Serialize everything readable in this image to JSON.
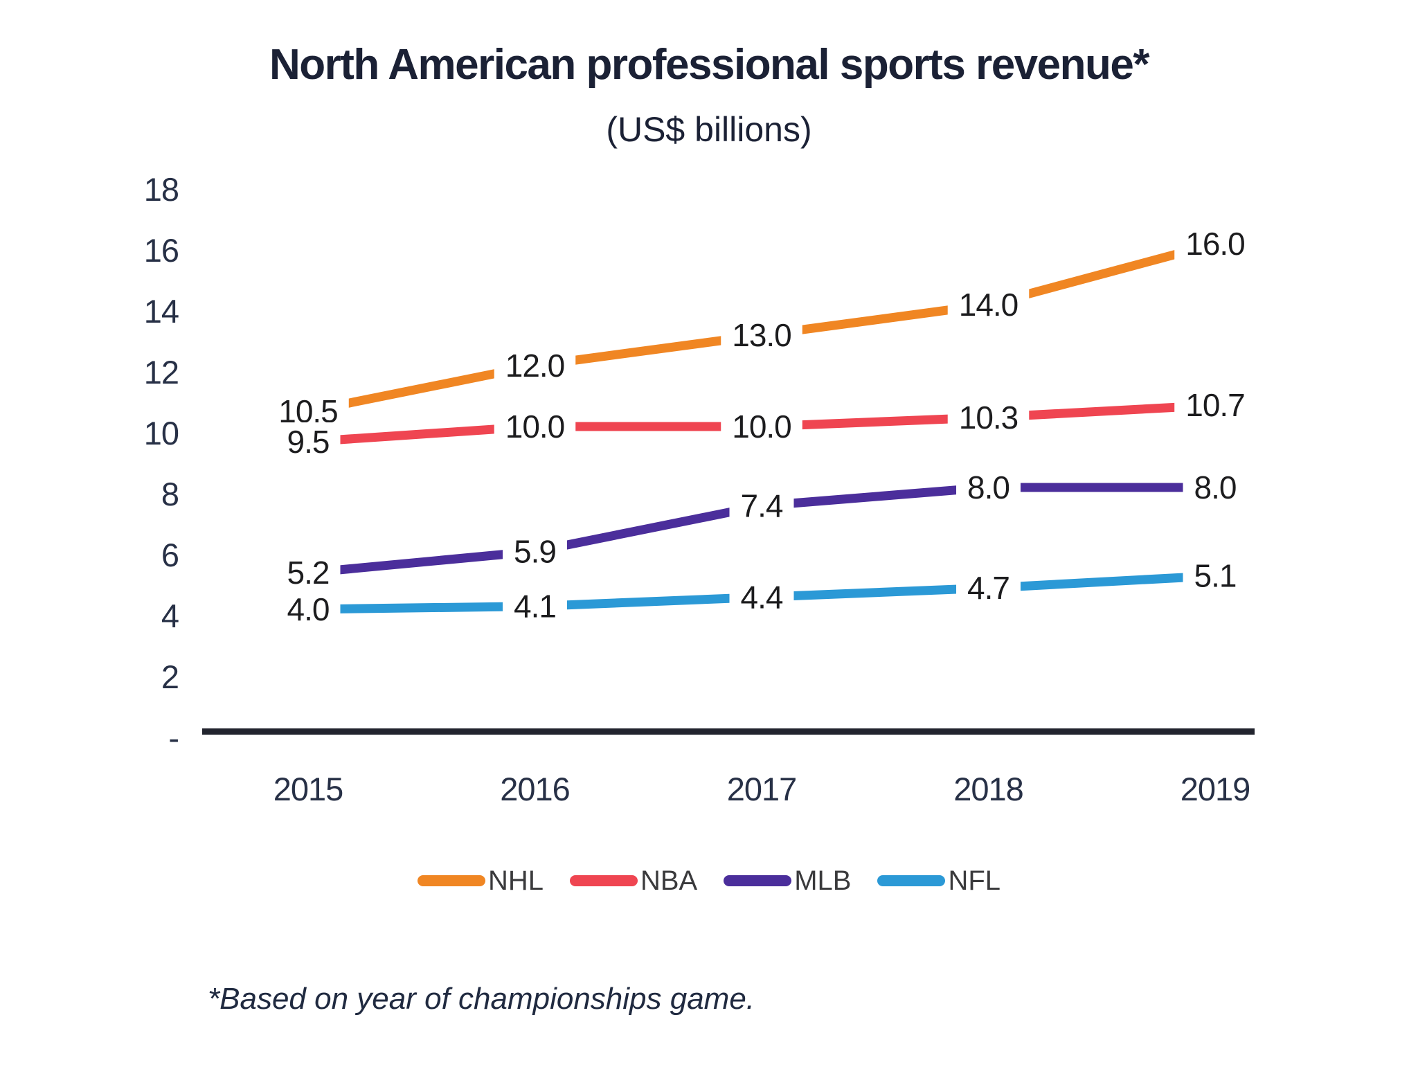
{
  "title": "North American professional sports revenue*",
  "subtitle": "(US$ billions)",
  "footnote": "*Based on year of championships game.",
  "colors": {
    "nhl_orange": "#F08623",
    "nba_red": "#EF4551",
    "mlb_purple": "#4B2E9B",
    "nfl_blue": "#2B99D6",
    "axis": "#22242E",
    "tick_text": "#273046",
    "data_label_text": "#1C1C1E",
    "title_text": "#1B2135",
    "legend_text": "#3A3A3C"
  },
  "chart_data": {
    "type": "line",
    "title": "North American professional sports revenue*",
    "subtitle": "(US$ billions)",
    "categories": [
      "2015",
      "2016",
      "2017",
      "2018",
      "2019"
    ],
    "series": [
      {
        "name": "NHL",
        "color": "#F08623",
        "values": [
          10.5,
          12.0,
          13.0,
          14.0,
          16.0
        ]
      },
      {
        "name": "NBA",
        "color": "#EF4551",
        "values": [
          9.5,
          10.0,
          10.0,
          10.3,
          10.7
        ]
      },
      {
        "name": "MLB",
        "color": "#4B2E9B",
        "values": [
          5.2,
          5.9,
          7.4,
          8.0,
          8.0
        ]
      },
      {
        "name": "NFL",
        "color": "#2B99D6",
        "values": [
          4.0,
          4.1,
          4.4,
          4.7,
          5.1
        ]
      }
    ],
    "y_tick_labels": [
      "18",
      "16",
      "14",
      "12",
      "10",
      "8",
      "6",
      "4",
      "2",
      "-"
    ],
    "y_tick_values": [
      18,
      16,
      14,
      12,
      10,
      8,
      6,
      4,
      2,
      0
    ],
    "ylim": [
      0,
      18
    ],
    "xlabel": "",
    "ylabel": "",
    "grid": false,
    "data_labels": true,
    "data_label_format": "one_decimal",
    "legend_position": "bottom",
    "footnote": "*Based on year of championships game."
  }
}
